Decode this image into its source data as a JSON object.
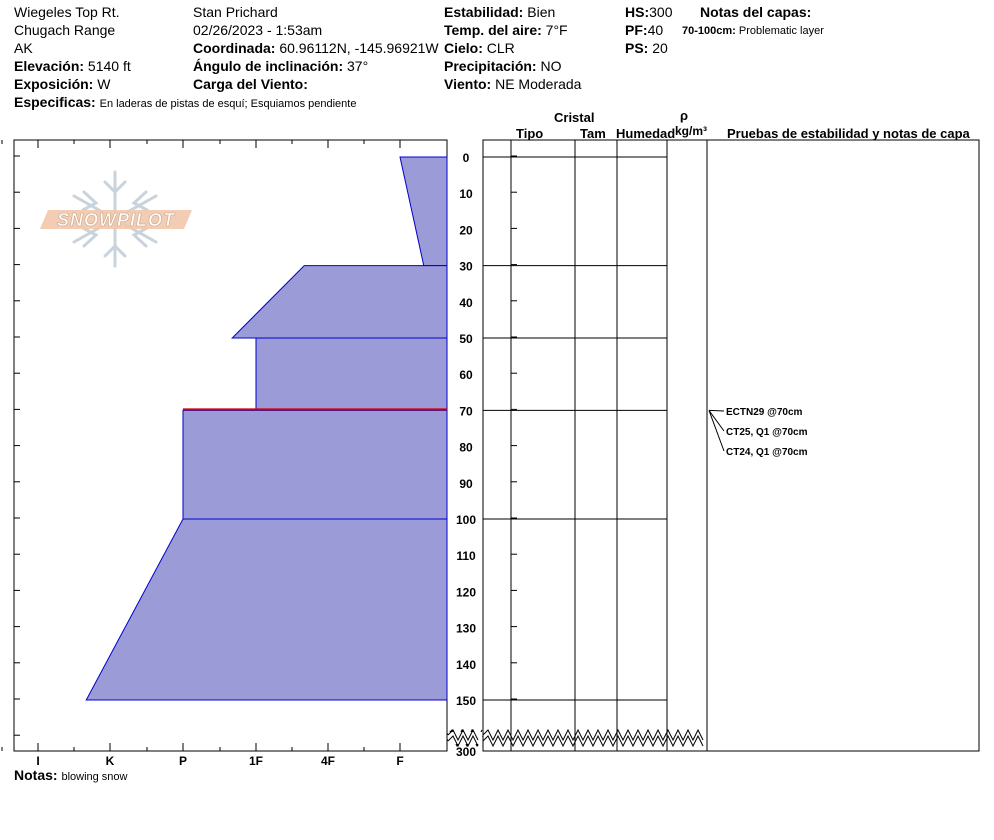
{
  "header": {
    "location": "Wiegeles Top Rt.",
    "range": "Chugach Range",
    "state": "AK",
    "elevation_label": "Elevación:",
    "elevation": "5140 ft",
    "aspect_label": "Exposición:",
    "aspect": "W",
    "specifics_label": "Especificas:",
    "specifics": "En laderas de pistas de esquí; Esquiamos pendiente",
    "observer": "Stan Prichard",
    "datetime": "02/26/2023 - 1:53am",
    "coord_label": "Coordinada:",
    "coord": "60.96112N, -145.96921W",
    "slope_label": "Ángulo de inclinación:",
    "slope": "37°",
    "wind_load_label": "Carga del Viento:",
    "stability_label": "Estabilidad:",
    "stability": "Bien",
    "air_temp_label": "Temp. del aire:",
    "air_temp": "7°F",
    "sky_label": "Cielo:",
    "sky": "CLR",
    "precip_label": "Precipitación:",
    "precip": "NO",
    "wind_label": "Viento:",
    "wind": "NE Moderada",
    "hs_label": "HS:",
    "hs": "300",
    "pf_label": "PF:",
    "pf": "40",
    "ps_label": "PS:",
    "ps": "20",
    "layer_notes_label": "Notas del capas:",
    "layer_note_range": "70-100cm:",
    "layer_note_text": "Problematic layer"
  },
  "logo_text": "SNOWPILOT",
  "columns": {
    "cristal": "Cristal",
    "tipo": "Tipo",
    "tam": "Tam",
    "humedad": "Humedad",
    "rho": "ρ",
    "density_unit": "kg/m³",
    "tests_header": "Pruebas de estabilidad y notas de capa"
  },
  "notes_label": "Notas:",
  "notes": "blowing snow",
  "chart_data": {
    "type": "area",
    "depth_axis": {
      "unit": "cm",
      "ticks": [
        0,
        10,
        20,
        30,
        40,
        50,
        60,
        70,
        80,
        90,
        100,
        110,
        120,
        130,
        140,
        150
      ],
      "bottom_label": "300",
      "range": [
        0,
        300
      ]
    },
    "hardness_axis": {
      "ticks": [
        "I",
        "K",
        "P",
        "1F",
        "4F",
        "F"
      ]
    },
    "layers": [
      {
        "top": 0,
        "bottom": 30,
        "hardness_top": "F",
        "hardness_bottom": "F-"
      },
      {
        "top": 30,
        "bottom": 50,
        "hardness_top": "4F+",
        "hardness_bottom": "1F+"
      },
      {
        "top": 50,
        "bottom": 70,
        "hardness_top": "1F",
        "hardness_bottom": "1F"
      },
      {
        "top": 70,
        "bottom": 100,
        "hardness_top": "P",
        "hardness_bottom": "P"
      },
      {
        "top": 100,
        "bottom": 150,
        "hardness_top": "P",
        "hardness_bottom": "K+"
      }
    ],
    "weak_layer_depth": 70,
    "stability_tests": [
      {
        "label": "ECTN29 @70cm",
        "depth": 70
      },
      {
        "label": "CT25, Q1 @70cm",
        "depth": 70
      },
      {
        "label": "CT24, Q1 @70cm",
        "depth": 70
      }
    ],
    "colors": {
      "fill": "#9b9bd8",
      "edge": "#0000cc",
      "weak": "#cc0000"
    }
  }
}
